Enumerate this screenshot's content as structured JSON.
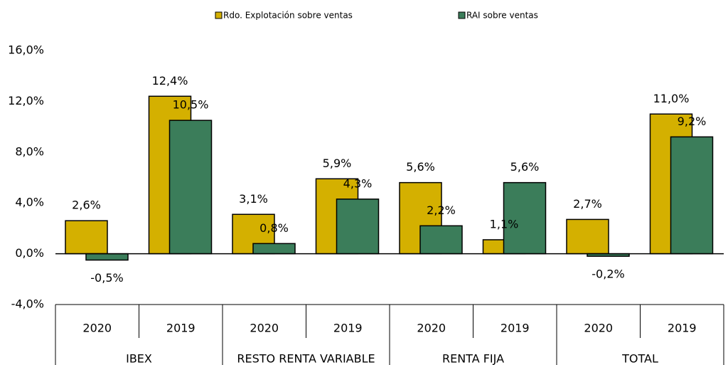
{
  "chart_data": {
    "type": "bar",
    "categories": [
      "2020",
      "2019",
      "2020",
      "2019",
      "2020",
      "2019",
      "2020",
      "2019"
    ],
    "groups": [
      "IBEX",
      "RESTO RENTA VARIABLE",
      "RENTA FIJA",
      "TOTAL"
    ],
    "series": [
      {
        "name": "Rdo. Explotación sobre ventas",
        "color": "#d4b000",
        "values": [
          2.6,
          12.4,
          3.1,
          5.9,
          5.6,
          1.1,
          2.7,
          11.0
        ],
        "value_labels": [
          "2,6%",
          "12,4%",
          "3,1%",
          "5,9%",
          "5,6%",
          "1,1%",
          "2,7%",
          "11,0%"
        ]
      },
      {
        "name": "RAI sobre ventas",
        "color": "#3b7d5a",
        "values": [
          -0.5,
          10.5,
          0.8,
          4.3,
          2.2,
          5.6,
          -0.2,
          9.2
        ],
        "value_labels": [
          "-0,5%",
          "10,5%",
          "0,8%",
          "4,3%",
          "2,2%",
          "5,6%",
          "-0,2%",
          "9,2%"
        ]
      }
    ],
    "ylim": [
      -4,
      16
    ],
    "yticks": [
      {
        "value": -4,
        "label": "-4,0%"
      },
      {
        "value": 0,
        "label": "0,0%"
      },
      {
        "value": 4,
        "label": "4,0%"
      },
      {
        "value": 8,
        "label": "8,0%"
      },
      {
        "value": 12,
        "label": "12,0%"
      },
      {
        "value": 16,
        "label": "16,0%"
      }
    ],
    "legend": "top"
  }
}
